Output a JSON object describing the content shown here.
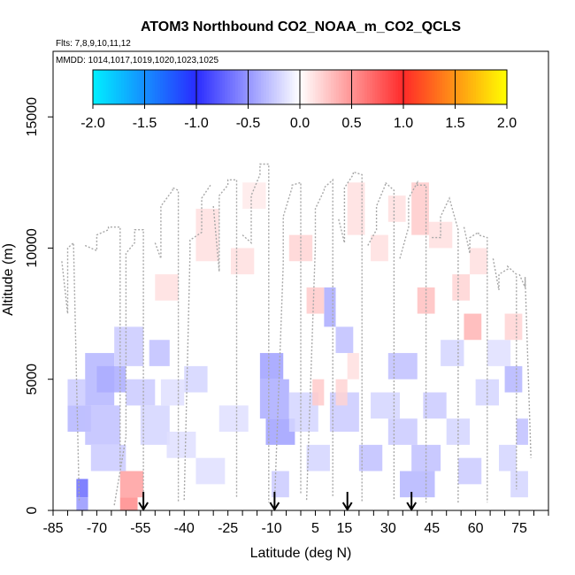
{
  "chart_data": {
    "type": "heatmap",
    "title": "ATOM3 Northbound CO2_NOAA_m_CO2_QCLS",
    "subtitle_flights": "Flts: 7,8,9,10,11,12",
    "subtitle_dates": "MMDD: 1014,1017,1019,1020,1023,1025",
    "xlabel": "Latitude (deg N)",
    "ylabel": "Altitude (m)",
    "xlim": [
      -85,
      85
    ],
    "ylim": [
      0,
      17500
    ],
    "xticks": [
      -85,
      -70,
      -55,
      -40,
      -25,
      -10,
      5,
      15,
      30,
      45,
      60,
      75
    ],
    "yticks": [
      0,
      5000,
      10000,
      15000
    ],
    "colorbar": {
      "ticks": [
        "-2.0",
        "-1.5",
        "-1.0",
        "-0.5",
        "0.0",
        "0.5",
        "1.0",
        "1.5",
        "2.0"
      ],
      "min": -2.0,
      "max": 2.0,
      "colors": [
        "#00f0ff",
        "#2a2cff",
        "#ffffff",
        "#ff2a2a",
        "#ffff00"
      ]
    },
    "arrows_lat": [
      -54,
      -9,
      16,
      38
    ],
    "cells": [
      {
        "lat": [
          -82,
          -72
        ],
        "alt": [
          7000,
          10000
        ],
        "value": 0.0
      },
      {
        "lat": [
          -80,
          -74
        ],
        "alt": [
          4000,
          5000
        ],
        "value": -0.25
      },
      {
        "lat": [
          -80,
          -72
        ],
        "alt": [
          3000,
          4000
        ],
        "value": -0.35
      },
      {
        "lat": [
          -77,
          -73
        ],
        "alt": [
          500,
          1200
        ],
        "value": -0.7
      },
      {
        "lat": [
          -77,
          -73
        ],
        "alt": [
          0,
          500
        ],
        "value": -0.5
      },
      {
        "lat": [
          -74,
          -64
        ],
        "alt": [
          4000,
          6000
        ],
        "value": -0.35
      },
      {
        "lat": [
          -74,
          -62
        ],
        "alt": [
          2500,
          4000
        ],
        "value": -0.3
      },
      {
        "lat": [
          -72,
          -60
        ],
        "alt": [
          1500,
          2500
        ],
        "value": -0.25
      },
      {
        "lat": [
          -70,
          -60
        ],
        "alt": [
          4500,
          5500
        ],
        "value": -0.4
      },
      {
        "lat": [
          -64,
          -54
        ],
        "alt": [
          5500,
          7000
        ],
        "value": -0.25
      },
      {
        "lat": [
          -62,
          -54
        ],
        "alt": [
          500,
          1500
        ],
        "value": 0.45
      },
      {
        "lat": [
          -62,
          -56
        ],
        "alt": [
          0,
          500
        ],
        "value": 0.55
      },
      {
        "lat": [
          -60,
          -50
        ],
        "alt": [
          4000,
          5000
        ],
        "value": -0.25
      },
      {
        "lat": [
          -55,
          -45
        ],
        "alt": [
          2500,
          4000
        ],
        "value": -0.2
      },
      {
        "lat": [
          -52,
          -45
        ],
        "alt": [
          5500,
          6500
        ],
        "value": -0.3
      },
      {
        "lat": [
          -48,
          -40
        ],
        "alt": [
          4000,
          5000
        ],
        "value": -0.15
      },
      {
        "lat": [
          -46,
          -36
        ],
        "alt": [
          2000,
          3000
        ],
        "value": -0.15
      },
      {
        "lat": [
          -40,
          -32
        ],
        "alt": [
          4500,
          5500
        ],
        "value": -0.2
      },
      {
        "lat": [
          -36,
          -26
        ],
        "alt": [
          1000,
          2000
        ],
        "value": -0.15
      },
      {
        "lat": [
          -28,
          -18
        ],
        "alt": [
          3000,
          4000
        ],
        "value": -0.15
      },
      {
        "lat": [
          -14,
          -6
        ],
        "alt": [
          5000,
          6000
        ],
        "value": -0.45
      },
      {
        "lat": [
          -14,
          -4
        ],
        "alt": [
          3500,
          5000
        ],
        "value": -0.4
      },
      {
        "lat": [
          -12,
          -2
        ],
        "alt": [
          2500,
          3500
        ],
        "value": -0.45
      },
      {
        "lat": [
          -10,
          -4
        ],
        "alt": [
          500,
          1500
        ],
        "value": -0.25
      },
      {
        "lat": [
          -4,
          6
        ],
        "alt": [
          3000,
          4500
        ],
        "value": -0.2
      },
      {
        "lat": [
          2,
          10
        ],
        "alt": [
          1500,
          2500
        ],
        "value": -0.2
      },
      {
        "lat": [
          8,
          12
        ],
        "alt": [
          7000,
          8500
        ],
        "value": -0.4
      },
      {
        "lat": [
          10,
          20
        ],
        "alt": [
          3000,
          4500
        ],
        "value": -0.25
      },
      {
        "lat": [
          12,
          18
        ],
        "alt": [
          6000,
          7000
        ],
        "value": -0.3
      },
      {
        "lat": [
          16,
          20
        ],
        "alt": [
          5000,
          6000
        ],
        "value": 0.15
      },
      {
        "lat": [
          20,
          28
        ],
        "alt": [
          1500,
          2500
        ],
        "value": -0.3
      },
      {
        "lat": [
          24,
          34
        ],
        "alt": [
          3500,
          4500
        ],
        "value": -0.2
      },
      {
        "lat": [
          30,
          40
        ],
        "alt": [
          5000,
          6000
        ],
        "value": -0.3
      },
      {
        "lat": [
          30,
          40
        ],
        "alt": [
          2500,
          3500
        ],
        "value": -0.25
      },
      {
        "lat": [
          34,
          46
        ],
        "alt": [
          500,
          1500
        ],
        "value": -0.35
      },
      {
        "lat": [
          38,
          48
        ],
        "alt": [
          1500,
          2500
        ],
        "value": -0.3
      },
      {
        "lat": [
          42,
          50
        ],
        "alt": [
          3500,
          4500
        ],
        "value": -0.25
      },
      {
        "lat": [
          48,
          56
        ],
        "alt": [
          5500,
          6500
        ],
        "value": -0.2
      },
      {
        "lat": [
          50,
          58
        ],
        "alt": [
          2500,
          3500
        ],
        "value": -0.2
      },
      {
        "lat": [
          54,
          62
        ],
        "alt": [
          1000,
          2000
        ],
        "value": -0.25
      },
      {
        "lat": [
          60,
          68
        ],
        "alt": [
          4000,
          5000
        ],
        "value": -0.2
      },
      {
        "lat": [
          64,
          72
        ],
        "alt": [
          5500,
          6500
        ],
        "value": -0.15
      },
      {
        "lat": [
          68,
          74
        ],
        "alt": [
          1500,
          2500
        ],
        "value": -0.2
      },
      {
        "lat": [
          70,
          76
        ],
        "alt": [
          4500,
          5500
        ],
        "value": -0.35
      },
      {
        "lat": [
          74,
          78
        ],
        "alt": [
          2500,
          3500
        ],
        "value": -0.3
      },
      {
        "lat": [
          72,
          78
        ],
        "alt": [
          500,
          1500
        ],
        "value": -0.2
      },
      {
        "lat": [
          -50,
          -42
        ],
        "alt": [
          8000,
          9000
        ],
        "value": 0.15
      },
      {
        "lat": [
          -36,
          -28
        ],
        "alt": [
          9500,
          11500
        ],
        "value": 0.15
      },
      {
        "lat": [
          -24,
          -16
        ],
        "alt": [
          9000,
          10000
        ],
        "value": 0.15
      },
      {
        "lat": [
          -20,
          -12
        ],
        "alt": [
          11500,
          12500
        ],
        "value": 0.1
      },
      {
        "lat": [
          -4,
          4
        ],
        "alt": [
          9500,
          10500
        ],
        "value": 0.2
      },
      {
        "lat": [
          2,
          8
        ],
        "alt": [
          7500,
          8500
        ],
        "value": 0.25
      },
      {
        "lat": [
          4,
          8
        ],
        "alt": [
          4000,
          5000
        ],
        "value": 0.25
      },
      {
        "lat": [
          12,
          16
        ],
        "alt": [
          4000,
          5000
        ],
        "value": 0.2
      },
      {
        "lat": [
          16,
          22
        ],
        "alt": [
          10500,
          12500
        ],
        "value": 0.15
      },
      {
        "lat": [
          24,
          30
        ],
        "alt": [
          9500,
          10500
        ],
        "value": 0.15
      },
      {
        "lat": [
          30,
          36
        ],
        "alt": [
          11000,
          12000
        ],
        "value": 0.15
      },
      {
        "lat": [
          38,
          44
        ],
        "alt": [
          10500,
          12500
        ],
        "value": 0.25
      },
      {
        "lat": [
          40,
          46
        ],
        "alt": [
          7500,
          8500
        ],
        "value": 0.3
      },
      {
        "lat": [
          44,
          52
        ],
        "alt": [
          10000,
          11000
        ],
        "value": 0.15
      },
      {
        "lat": [
          52,
          58
        ],
        "alt": [
          8000,
          9000
        ],
        "value": 0.2
      },
      {
        "lat": [
          56,
          62
        ],
        "alt": [
          6500,
          7500
        ],
        "value": 0.35
      },
      {
        "lat": [
          58,
          64
        ],
        "alt": [
          9000,
          10000
        ],
        "value": 0.15
      },
      {
        "lat": [
          70,
          76
        ],
        "alt": [
          6500,
          7500
        ],
        "value": 0.2
      }
    ],
    "tracks": [
      {
        "lat": [
          -82,
          -80,
          -80,
          -78,
          -78,
          -76
        ],
        "alt": [
          9500,
          7500,
          10000,
          10200,
          10200,
          300
        ]
      },
      {
        "lat": [
          -74,
          -70,
          -70,
          -66,
          -66,
          -62,
          -62
        ],
        "alt": [
          10100,
          9900,
          10500,
          10700,
          10800,
          10800,
          1600
        ]
      },
      {
        "lat": [
          -64,
          -60,
          -60,
          -57,
          -57,
          -54,
          -54
        ],
        "alt": [
          200,
          2800,
          9800,
          10200,
          10700,
          10700,
          300
        ]
      },
      {
        "lat": [
          -50,
          -48,
          -48,
          -44,
          -44,
          -42,
          -42
        ],
        "alt": [
          10200,
          9600,
          11600,
          12200,
          12300,
          12200,
          300
        ]
      },
      {
        "lat": [
          -40,
          -38,
          -38,
          -34,
          -34,
          -31
        ],
        "alt": [
          400,
          9800,
          10300,
          10600,
          11900,
          12400
        ]
      },
      {
        "lat": [
          -30,
          -28,
          -28,
          -25,
          -25,
          -22,
          -22
        ],
        "alt": [
          11600,
          9100,
          12000,
          12400,
          12600,
          12600,
          500
        ]
      },
      {
        "lat": [
          -20,
          -17,
          -17,
          -14,
          -14,
          -11,
          -11
        ],
        "alt": [
          10500,
          10200,
          12000,
          12800,
          13200,
          13200,
          300
        ]
      },
      {
        "lat": [
          -9,
          -6,
          -6,
          -3,
          -3,
          0,
          0
        ],
        "alt": [
          300,
          9400,
          11200,
          12300,
          12400,
          12500,
          600
        ]
      },
      {
        "lat": [
          2,
          5,
          5,
          8,
          8,
          11,
          11
        ],
        "alt": [
          400,
          10100,
          11500,
          12200,
          12300,
          12600,
          500
        ]
      },
      {
        "lat": [
          13,
          15,
          15,
          18,
          18,
          21,
          21
        ],
        "alt": [
          11100,
          10200,
          12300,
          12800,
          12900,
          12800,
          300
        ]
      },
      {
        "lat": [
          23,
          26,
          26,
          29,
          29,
          32,
          32
        ],
        "alt": [
          10100,
          10700,
          11600,
          12400,
          12500,
          12200,
          400
        ]
      },
      {
        "lat": [
          34,
          37,
          37,
          40,
          40,
          43,
          43
        ],
        "alt": [
          9600,
          10800,
          11900,
          12500,
          12400,
          12400,
          300
        ]
      },
      {
        "lat": [
          45,
          48,
          48,
          51,
          51,
          54,
          54
        ],
        "alt": [
          10400,
          10400,
          11200,
          11900,
          11900,
          10700,
          300
        ]
      },
      {
        "lat": [
          56,
          58,
          58,
          61,
          61,
          64,
          64
        ],
        "alt": [
          10800,
          9800,
          10400,
          10600,
          10500,
          10400,
          300
        ]
      },
      {
        "lat": [
          66,
          68,
          68,
          71,
          71,
          74,
          74
        ],
        "alt": [
          9600,
          8400,
          9000,
          9200,
          9300,
          9000,
          800
        ]
      },
      {
        "lat": [
          75,
          77,
          77,
          79
        ],
        "alt": [
          9000,
          8500,
          8900,
          2000
        ]
      }
    ]
  }
}
